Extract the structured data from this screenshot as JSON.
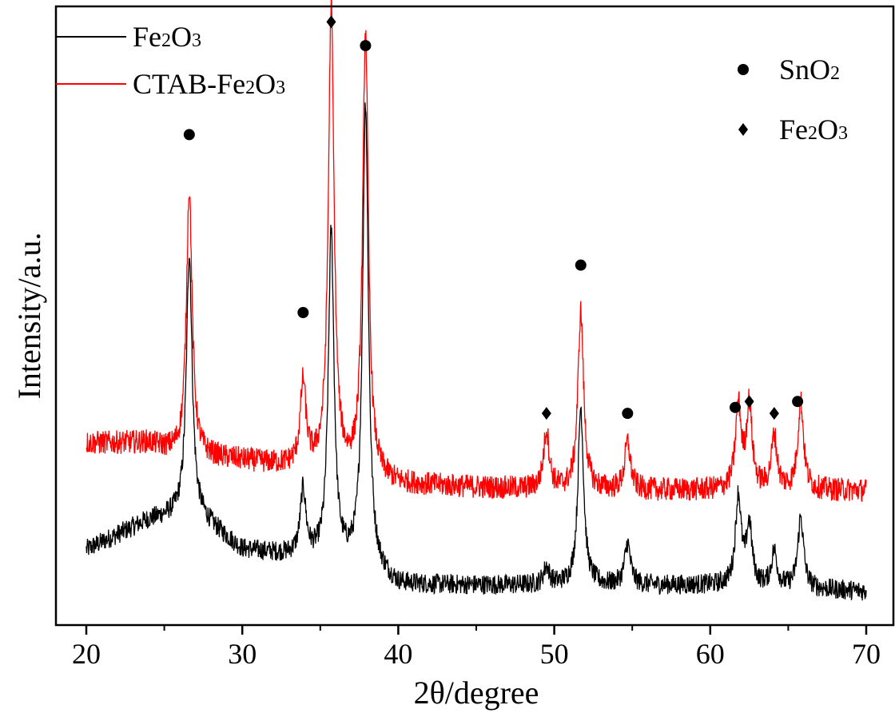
{
  "chart_data": {
    "type": "line",
    "xlabel": "2θ/degree",
    "ylabel": "Intensity/a.u.",
    "xlim": [
      20,
      70
    ],
    "xticks": [
      20,
      30,
      40,
      50,
      60,
      70
    ],
    "y_ticks_labeled": false,
    "grid": false,
    "series": [
      {
        "name": "Fe2O3",
        "name_parts": [
          "Fe",
          "2",
          "O",
          "3"
        ],
        "color": "#000000",
        "baseline": 0.03,
        "noise": 0.017,
        "background": [
          [
            20,
            0.07
          ],
          [
            24,
            0.12
          ],
          [
            26,
            0.13
          ],
          [
            27,
            0.13
          ],
          [
            30,
            0.07
          ],
          [
            33,
            0.06
          ],
          [
            36,
            0.05
          ],
          [
            38,
            0.04
          ],
          [
            40,
            0.01
          ],
          [
            50,
            0.01
          ],
          [
            60,
            0.01
          ],
          [
            70,
            0.0
          ]
        ],
        "peaks": [
          [
            26.6,
            0.44
          ],
          [
            33.9,
            0.11
          ],
          [
            35.7,
            0.55
          ],
          [
            37.9,
            0.78
          ],
          [
            49.5,
            0.03
          ],
          [
            51.7,
            0.3
          ],
          [
            54.7,
            0.07
          ],
          [
            61.8,
            0.15
          ],
          [
            62.5,
            0.1
          ],
          [
            64.1,
            0.06
          ],
          [
            65.8,
            0.12
          ]
        ]
      },
      {
        "name": "CTAB-Fe2O3",
        "name_parts": [
          "CTAB-Fe",
          "2",
          "O",
          "3"
        ],
        "color": "#ff0000",
        "baseline": 0.2,
        "noise": 0.02,
        "background": [
          [
            20,
            0.08
          ],
          [
            24,
            0.08
          ],
          [
            26,
            0.06
          ],
          [
            30,
            0.05
          ],
          [
            33,
            0.04
          ],
          [
            36,
            0.03
          ],
          [
            38,
            0.02
          ],
          [
            40,
            0.01
          ],
          [
            50,
            0.0
          ],
          [
            60,
            0.0
          ],
          [
            70,
            0.0
          ]
        ],
        "peaks": [
          [
            26.6,
            0.45
          ],
          [
            33.9,
            0.14
          ],
          [
            35.7,
            0.78
          ],
          [
            37.9,
            0.75
          ],
          [
            49.5,
            0.1
          ],
          [
            51.7,
            0.3
          ],
          [
            54.7,
            0.08
          ],
          [
            61.8,
            0.14
          ],
          [
            62.5,
            0.14
          ],
          [
            64.1,
            0.09
          ],
          [
            65.8,
            0.15
          ]
        ]
      }
    ],
    "markers": [
      {
        "phase": "SnO2",
        "x": 26.6,
        "y": 0.8
      },
      {
        "phase": "SnO2",
        "x": 33.9,
        "y": 0.5
      },
      {
        "phase": "Fe2O3",
        "x": 35.7,
        "y": 0.99
      },
      {
        "phase": "SnO2",
        "x": 37.9,
        "y": 0.95
      },
      {
        "phase": "Fe2O3",
        "x": 49.5,
        "y": 0.33
      },
      {
        "phase": "SnO2",
        "x": 51.7,
        "y": 0.58
      },
      {
        "phase": "SnO2",
        "x": 54.7,
        "y": 0.33
      },
      {
        "phase": "SnO2",
        "x": 61.6,
        "y": 0.34
      },
      {
        "phase": "Fe2O3",
        "x": 62.5,
        "y": 0.35
      },
      {
        "phase": "Fe2O3",
        "x": 64.1,
        "y": 0.33
      },
      {
        "phase": "SnO2",
        "x": 65.6,
        "y": 0.35
      }
    ],
    "symbol_legend": [
      {
        "phase": "SnO2",
        "symbol": "circle",
        "label_parts": [
          "SnO",
          "2",
          "",
          ""
        ]
      },
      {
        "phase": "Fe2O3",
        "symbol": "diamond",
        "label_parts": [
          "Fe",
          "2",
          "O",
          "3"
        ]
      }
    ],
    "series_legend_placement": "top-left",
    "symbol_legend_placement": "top-right"
  }
}
